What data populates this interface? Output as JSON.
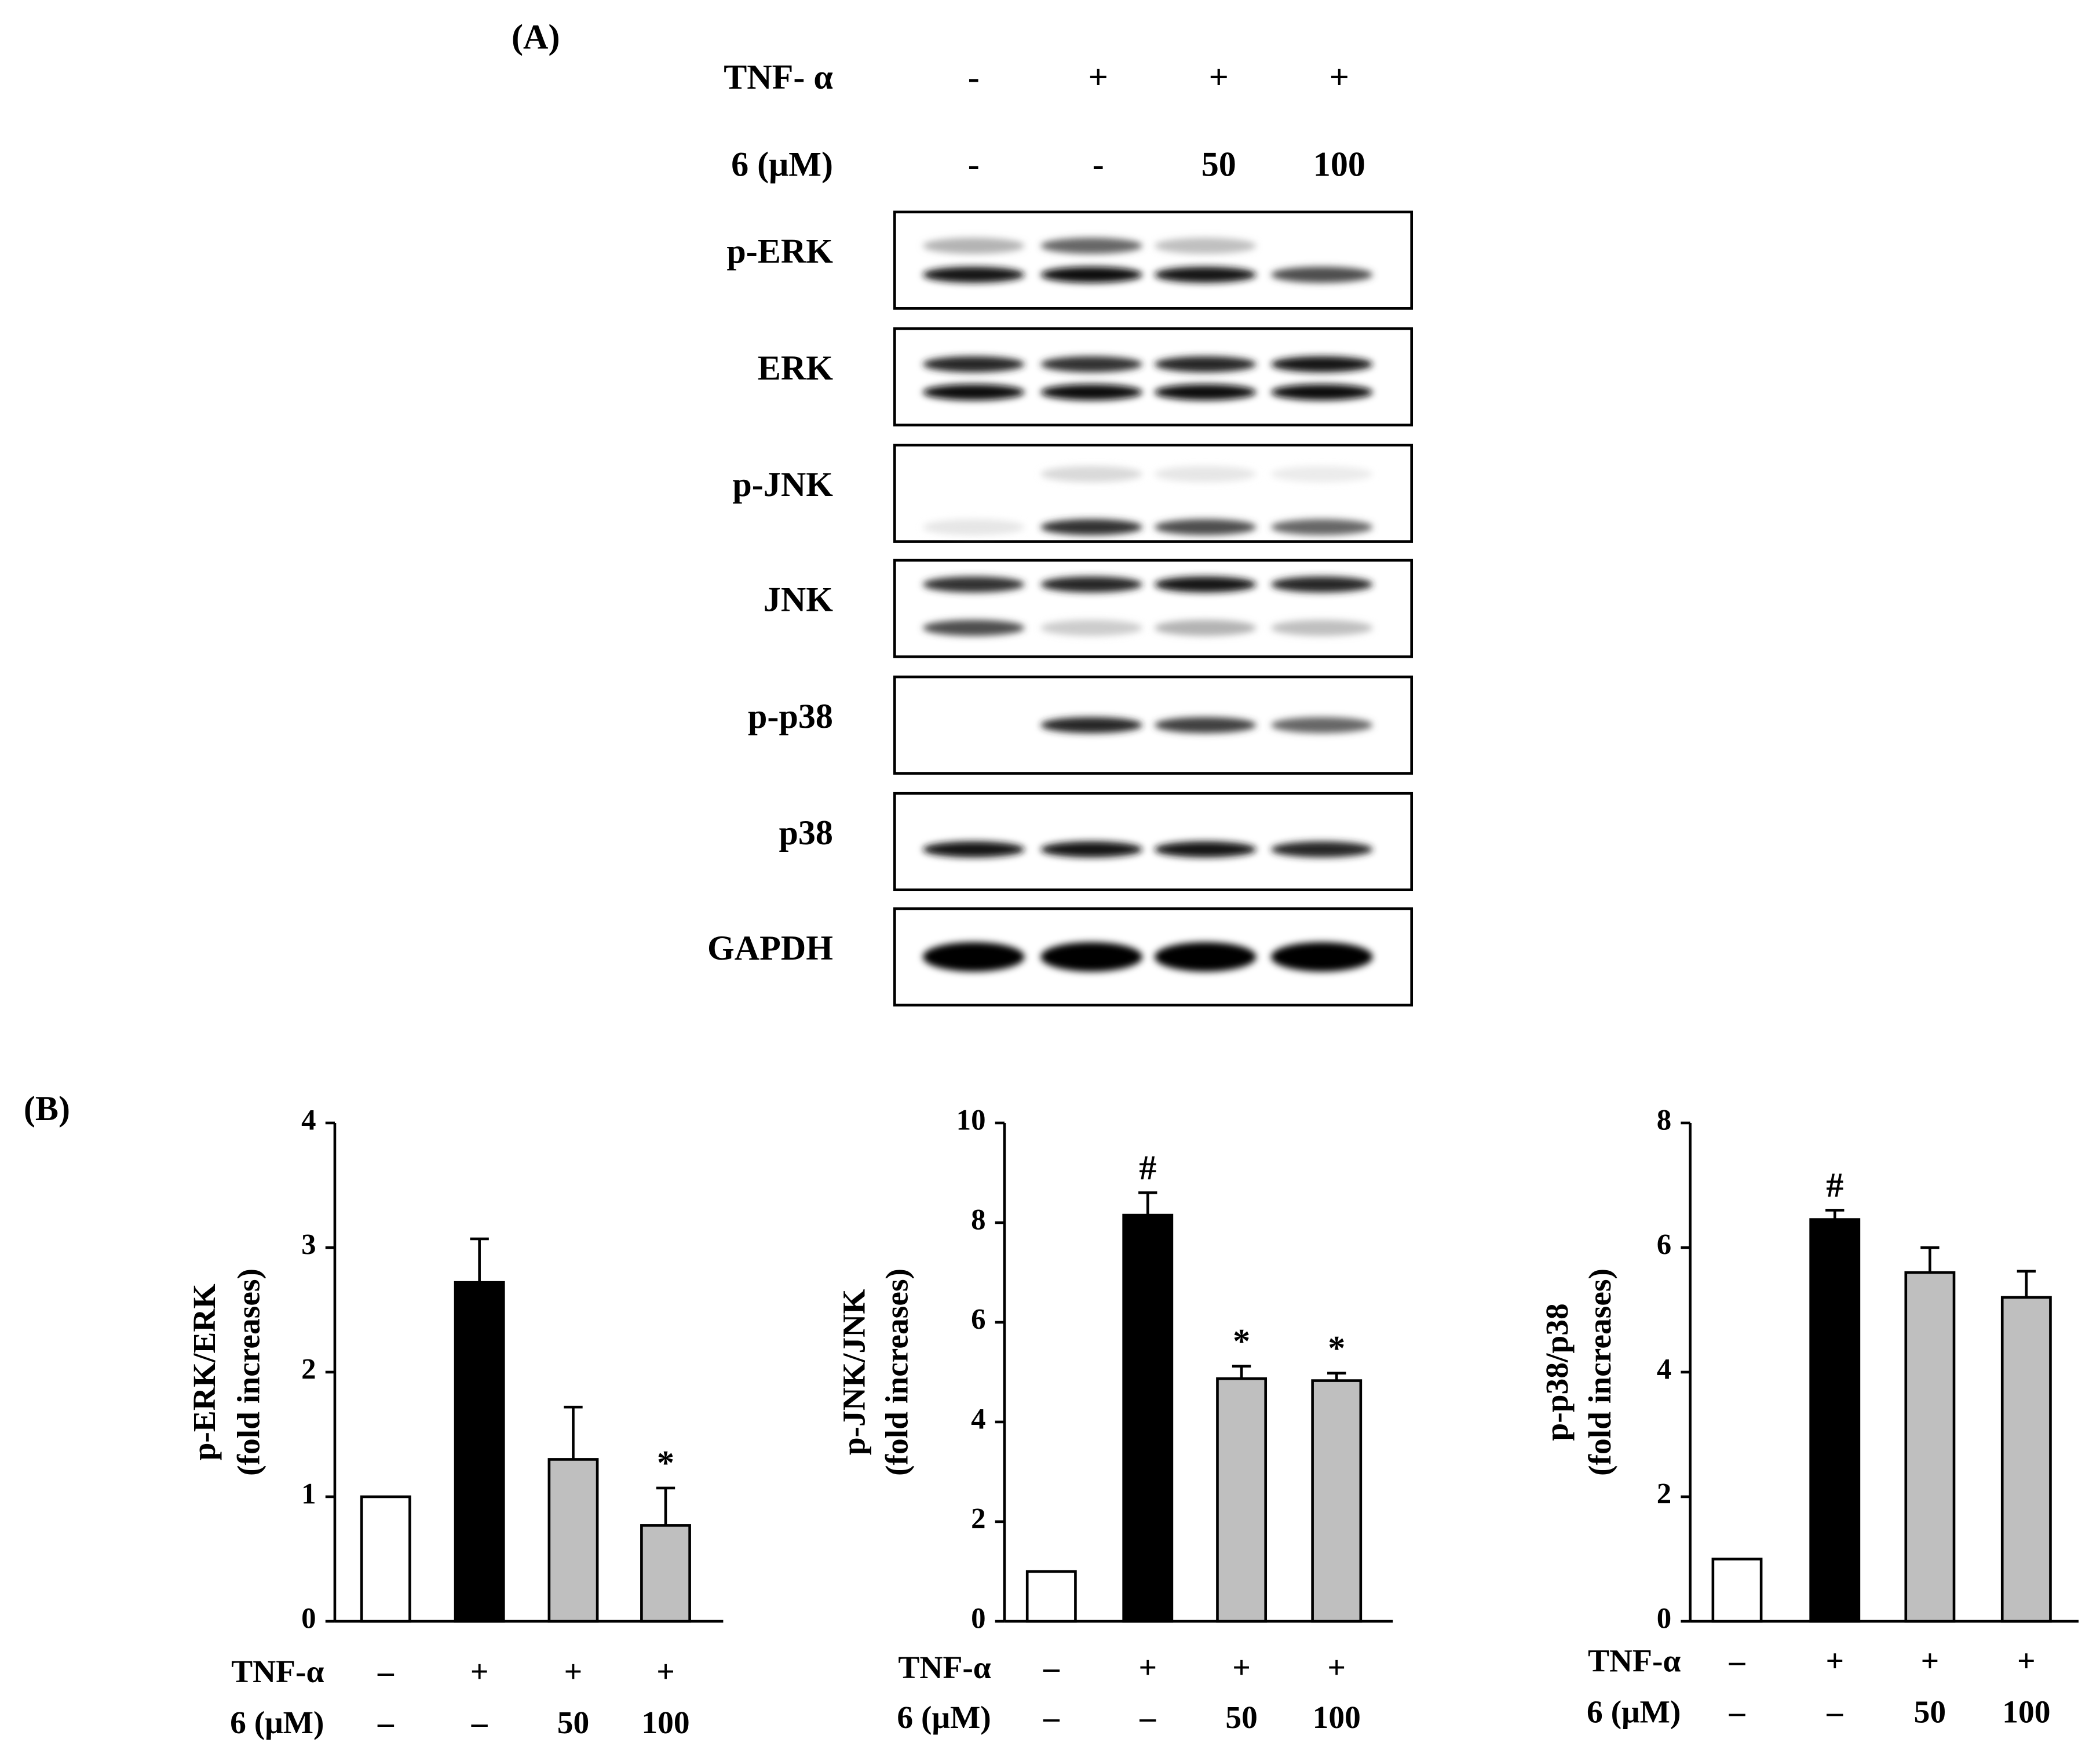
{
  "panel_a": {
    "label": "(A)",
    "treatments": [
      {
        "label": "TNF- α",
        "values": [
          "-",
          "+",
          "+",
          "+"
        ]
      },
      {
        "label": "6 (μM)",
        "values": [
          "-",
          "-",
          "50",
          "100"
        ]
      }
    ],
    "blots": [
      "p-ERK",
      "ERK",
      "p-JNK",
      "JNK",
      "p-p38",
      "p38",
      "GAPDH"
    ]
  },
  "panel_b": {
    "label": "(B)"
  },
  "chart_data": [
    {
      "type": "bar",
      "ylabel": [
        "p-ERK/ERK",
        "(fold increases)"
      ],
      "values": [
        1,
        2.72,
        1.3,
        0.77
      ],
      "errors": [
        null,
        0.35,
        0.42,
        0.3
      ],
      "colors": [
        "#ffffff",
        "#000000",
        "#bfbfbf",
        "#bfbfbf"
      ],
      "value_annotations": [
        null,
        null,
        null,
        "*"
      ],
      "ylim": [
        0,
        4
      ],
      "yticks": [
        0,
        1,
        2,
        3,
        4
      ],
      "treatments": [
        {
          "label": "TNF-α",
          "values": [
            "–",
            "+",
            "+",
            "+"
          ]
        },
        {
          "label": "6 (μM)",
          "values": [
            "–",
            "–",
            "50",
            "100"
          ]
        }
      ]
    },
    {
      "type": "bar",
      "ylabel": [
        "p-JNK/JNK",
        "(fold increases)"
      ],
      "values": [
        1,
        8.15,
        4.87,
        4.83
      ],
      "errors": [
        null,
        0.45,
        0.25,
        0.15
      ],
      "colors": [
        "#ffffff",
        "#000000",
        "#bfbfbf",
        "#bfbfbf"
      ],
      "value_annotations": [
        null,
        "#",
        "*",
        "*"
      ],
      "ylim": [
        0,
        10
      ],
      "yticks": [
        0,
        2,
        4,
        6,
        8,
        10
      ],
      "treatments": [
        {
          "label": "TNF-α",
          "values": [
            "–",
            "+",
            "+",
            "+"
          ]
        },
        {
          "label": "6 (μM)",
          "values": [
            "–",
            "–",
            "50",
            "100"
          ]
        }
      ]
    },
    {
      "type": "bar",
      "ylabel": [
        "p-p38/p38",
        "(fold increases)"
      ],
      "values": [
        1,
        6.45,
        5.6,
        5.2
      ],
      "errors": [
        null,
        0.15,
        0.4,
        0.42
      ],
      "colors": [
        "#ffffff",
        "#000000",
        "#bfbfbf",
        "#bfbfbf"
      ],
      "value_annotations": [
        null,
        "#",
        null,
        null
      ],
      "ylim": [
        0,
        8
      ],
      "yticks": [
        0,
        2,
        4,
        6,
        8
      ],
      "treatments": [
        {
          "label": "TNF-α",
          "values": [
            "–",
            "+",
            "+",
            "+"
          ]
        },
        {
          "label": "6 (μM)",
          "values": [
            "–",
            "–",
            "50",
            "100"
          ]
        }
      ]
    }
  ]
}
